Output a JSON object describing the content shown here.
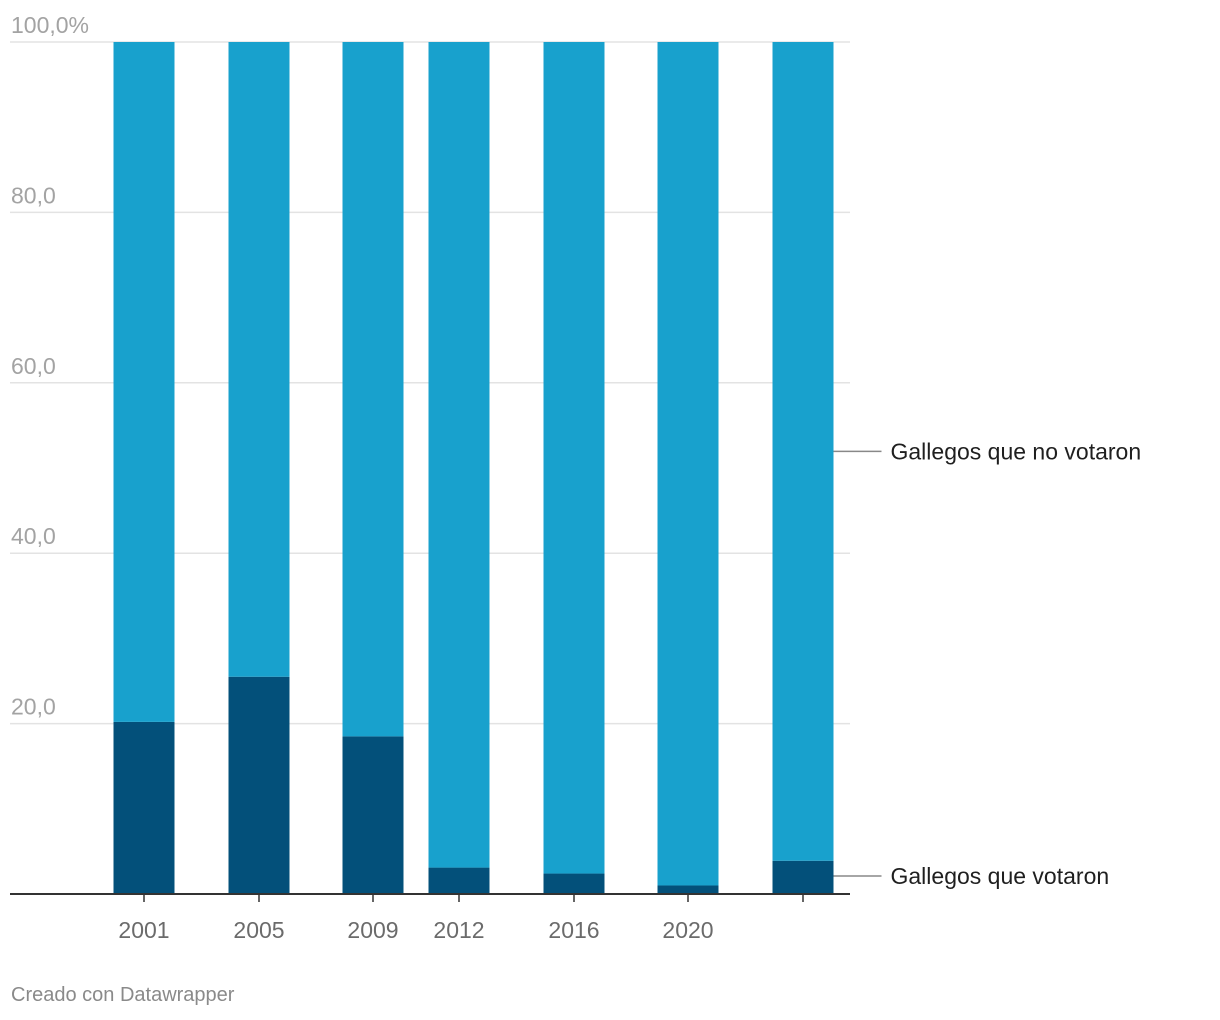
{
  "chart_data": {
    "type": "bar",
    "stacked": true,
    "percent_stacked": true,
    "categories": [
      "2001",
      "2005",
      "2009",
      "2012",
      "2016",
      "2020",
      ""
    ],
    "series": [
      {
        "name": "Gallegos que votaron",
        "color": "#03507a",
        "values": [
          20.2,
          25.5,
          18.5,
          3.1,
          2.4,
          1.0,
          3.9
        ]
      },
      {
        "name": "Gallegos que no votaron",
        "color": "#18a1cd",
        "values": [
          79.8,
          74.5,
          81.5,
          96.9,
          97.6,
          99.0,
          96.1
        ]
      }
    ],
    "ylim": [
      0,
      100
    ],
    "yticks": [
      "100,0%",
      "80,0",
      "60,0",
      "40,0",
      "20,0"
    ],
    "ytick_values": [
      100,
      80,
      60,
      40,
      20
    ],
    "grid": true,
    "legend_position": "right, inline labels",
    "title": "",
    "xlabel": "",
    "ylabel": ""
  },
  "footer": {
    "credit": "Creado con Datawrapper"
  }
}
